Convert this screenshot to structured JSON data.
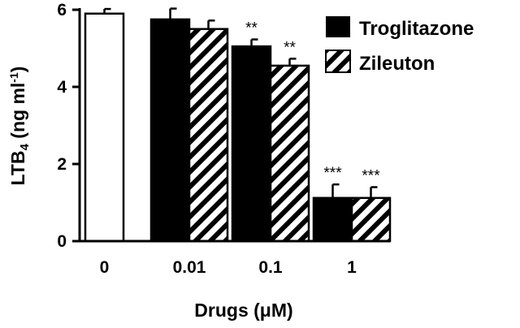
{
  "chart_data": {
    "type": "bar",
    "title": "",
    "xlabel": "Drugs (μM)",
    "ylabel_main": "LTB",
    "ylabel_sub": "4",
    "ylabel_rest": " (ng ml",
    "ylabel_sup": "-1",
    "ylabel_close": ")",
    "ylim": [
      0,
      6
    ],
    "yticks": [
      "0",
      "2",
      "4",
      "6"
    ],
    "categories": [
      "0",
      "0.01",
      "0.1",
      "1"
    ],
    "control": {
      "category": "0",
      "value": 5.9,
      "error": 0.12,
      "fill": "#ffffff"
    },
    "series": [
      {
        "name": "Troglitazone",
        "pattern": "solid",
        "values": [
          null,
          5.75,
          5.05,
          1.12
        ],
        "errors": [
          null,
          0.28,
          0.18,
          0.35
        ],
        "sig": [
          null,
          "",
          "**",
          "***"
        ]
      },
      {
        "name": "Zileuton",
        "pattern": "hatched",
        "values": [
          null,
          5.5,
          4.55,
          1.12
        ],
        "errors": [
          null,
          0.22,
          0.18,
          0.28
        ],
        "sig": [
          null,
          "",
          "**",
          "***"
        ]
      }
    ],
    "legend_position": "top-right"
  }
}
